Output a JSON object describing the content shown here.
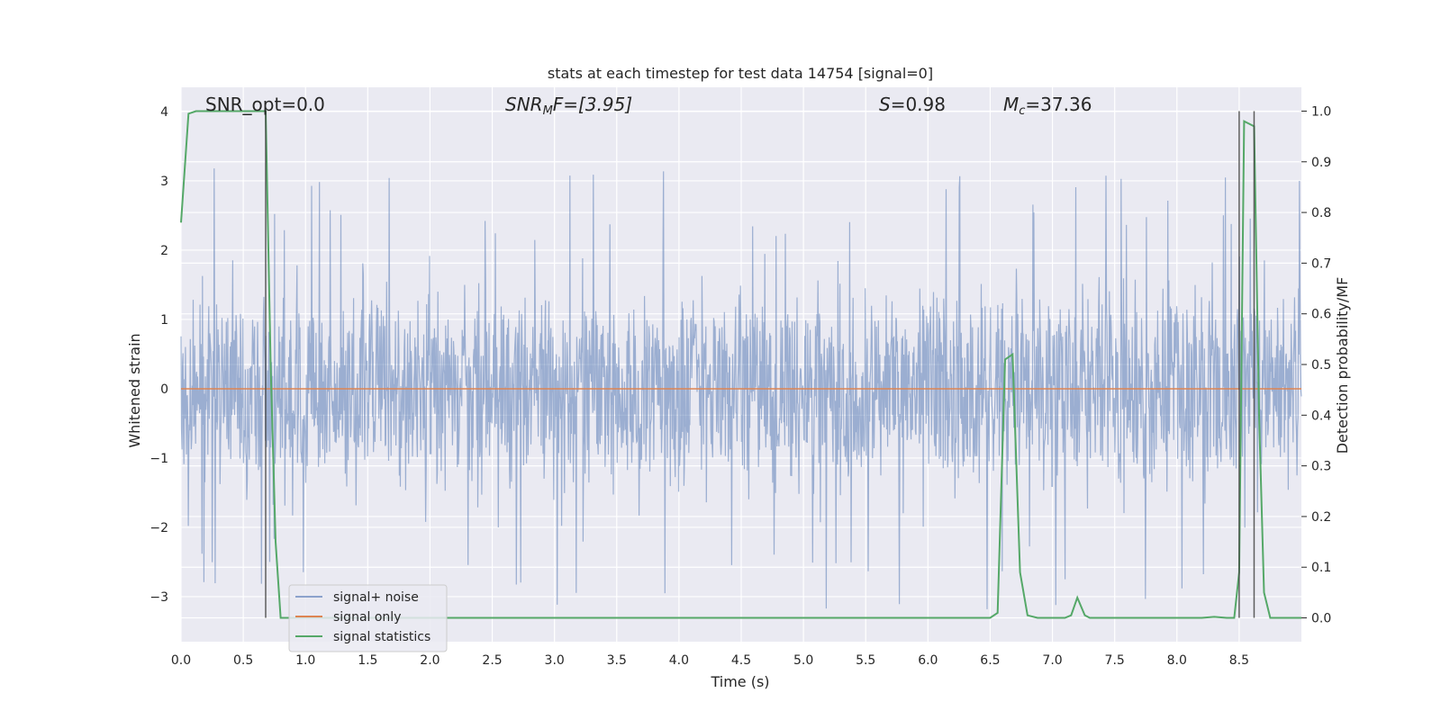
{
  "chart_data": {
    "type": "line",
    "title": "stats at each timestep for test data 14754 [signal=0]",
    "xlabel": "Time (s)",
    "ylabel": "Whitened strain",
    "y2label": "Detection probability/MF",
    "xlim": [
      0,
      9
    ],
    "ylim": [
      -3.65,
      4.35
    ],
    "y2lim": [
      -0.047,
      1.047
    ],
    "xticks": [
      "0.0",
      "0.5",
      "1.0",
      "1.5",
      "2.0",
      "2.5",
      "3.0",
      "3.5",
      "4.0",
      "4.5",
      "5.0",
      "5.5",
      "6.0",
      "6.5",
      "7.0",
      "7.5",
      "8.0",
      "8.5"
    ],
    "yticks": [
      "−3",
      "−2",
      "−1",
      "0",
      "1",
      "2",
      "3",
      "4"
    ],
    "y2ticks": [
      "0.0",
      "0.1",
      "0.2",
      "0.3",
      "0.4",
      "0.5",
      "0.6",
      "0.7",
      "0.8",
      "0.9",
      "1.0"
    ],
    "grid": true,
    "legend_position": "lower-left",
    "annotations": {
      "snr_opt": "SNR_opt=0.0",
      "snr_mf_prefix": "SNR",
      "snr_mf_sub": "M",
      "snr_mf_suffix": "F=[3.95]",
      "s_prefix": "S",
      "s_suffix": "=0.98",
      "mc_prefix": "M",
      "mc_sub": "c",
      "mc_suffix": "=37.36"
    },
    "vertical_lines": [
      0.68,
      8.5,
      8.62
    ],
    "series": [
      {
        "name": "signal+ noise",
        "color": "#4c72b0",
        "axis": "left",
        "noise": {
          "core_amplitude": 1.8,
          "max_amplitude": 4.0,
          "min_value": -3.35,
          "sample_count": 2300
        }
      },
      {
        "name": "signal only",
        "color": "#dd8452",
        "axis": "left",
        "x": [
          0,
          9
        ],
        "y": [
          0,
          0
        ]
      },
      {
        "name": "signal statistics",
        "color": "#55a868",
        "axis": "right",
        "x": [
          0.0,
          0.06,
          0.12,
          0.2,
          0.3,
          0.4,
          0.5,
          0.6,
          0.66,
          0.68,
          0.72,
          0.76,
          0.8,
          0.84,
          0.9,
          1.0,
          2.0,
          3.0,
          4.0,
          5.0,
          6.0,
          6.4,
          6.5,
          6.56,
          6.62,
          6.68,
          6.74,
          6.8,
          6.88,
          7.0,
          7.1,
          7.15,
          7.2,
          7.26,
          7.3,
          7.4,
          8.0,
          8.2,
          8.3,
          8.4,
          8.46,
          8.5,
          8.54,
          8.58,
          8.62,
          8.66,
          8.7,
          8.75,
          8.85,
          9.0
        ],
        "y": [
          0.78,
          0.995,
          1.0,
          1.0,
          1.0,
          1.0,
          1.0,
          1.0,
          1.0,
          1.0,
          0.5,
          0.15,
          0.0,
          0.0,
          0.0,
          0.0,
          0.0,
          0.0,
          0.0,
          0.0,
          0.0,
          0.0,
          0.0,
          0.01,
          0.51,
          0.52,
          0.09,
          0.005,
          0.0,
          0.0,
          0.0,
          0.005,
          0.04,
          0.005,
          0.0,
          0.0,
          0.0,
          0.0,
          0.002,
          0.0,
          0.0,
          0.09,
          0.98,
          0.975,
          0.97,
          0.4,
          0.05,
          0.0,
          0.0,
          0.0
        ]
      }
    ]
  }
}
